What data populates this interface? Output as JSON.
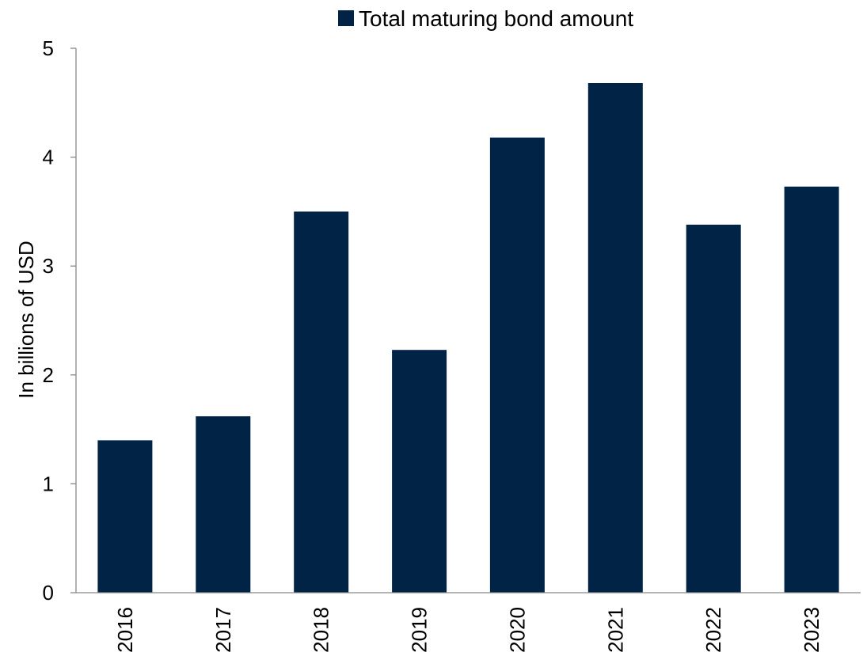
{
  "chart_data": {
    "type": "bar",
    "title": "",
    "xlabel": "",
    "ylabel": "In billions of USD",
    "ylim": [
      0,
      5
    ],
    "yticks": [
      0,
      1,
      2,
      3,
      4,
      5
    ],
    "categories": [
      "2016",
      "2017",
      "2018",
      "2019",
      "2020",
      "2021",
      "2022",
      "2023"
    ],
    "series": [
      {
        "name": "Total maturing bond amount",
        "color": "#002346",
        "values": [
          1.4,
          1.62,
          3.5,
          2.23,
          4.18,
          4.68,
          3.38,
          3.73
        ]
      }
    ],
    "legend_position": "top-center",
    "grid": false
  }
}
